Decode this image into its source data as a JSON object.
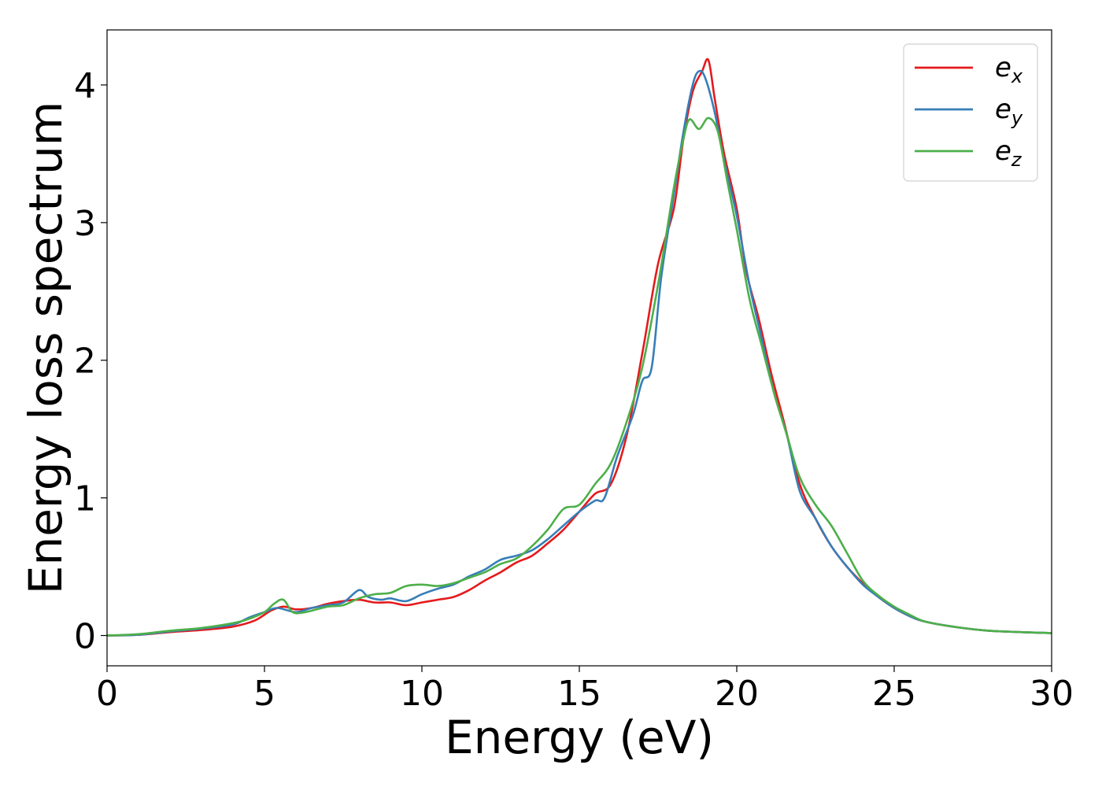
{
  "chart_data": {
    "type": "line",
    "title": "",
    "xlabel": "Energy (eV)",
    "ylabel": "Energy loss spectrum",
    "xlim": [
      0,
      30
    ],
    "ylim": [
      -0.22,
      4.4
    ],
    "xticks": [
      0,
      5,
      10,
      15,
      20,
      25,
      30
    ],
    "xtick_labels": [
      "0",
      "5",
      "10",
      "15",
      "20",
      "25",
      "30"
    ],
    "yticks": [
      0,
      1,
      2,
      3,
      4
    ],
    "ytick_labels": [
      "0",
      "1",
      "2",
      "3",
      "4"
    ],
    "grid": false,
    "legend_position": "top-right",
    "series": [
      {
        "name": "e_x",
        "label_base": "e",
        "label_sub": "x",
        "color": "#e41a1c",
        "points": [
          [
            0,
            0
          ],
          [
            1,
            0.005
          ],
          [
            2,
            0.025
          ],
          [
            3,
            0.04
          ],
          [
            4,
            0.065
          ],
          [
            4.7,
            0.11
          ],
          [
            5.2,
            0.18
          ],
          [
            5.6,
            0.21
          ],
          [
            6,
            0.19
          ],
          [
            6.5,
            0.2
          ],
          [
            7,
            0.23
          ],
          [
            7.5,
            0.25
          ],
          [
            8,
            0.26
          ],
          [
            8.5,
            0.24
          ],
          [
            9,
            0.24
          ],
          [
            9.5,
            0.22
          ],
          [
            10,
            0.24
          ],
          [
            10.5,
            0.26
          ],
          [
            11,
            0.28
          ],
          [
            11.5,
            0.33
          ],
          [
            12,
            0.4
          ],
          [
            12.5,
            0.46
          ],
          [
            13,
            0.53
          ],
          [
            13.5,
            0.58
          ],
          [
            14,
            0.67
          ],
          [
            14.5,
            0.77
          ],
          [
            15,
            0.9
          ],
          [
            15.5,
            1.03
          ],
          [
            16,
            1.1
          ],
          [
            16.5,
            1.45
          ],
          [
            17,
            2.05
          ],
          [
            17.5,
            2.7
          ],
          [
            18,
            3.1
          ],
          [
            18.3,
            3.6
          ],
          [
            18.6,
            3.95
          ],
          [
            18.9,
            4.1
          ],
          [
            19.1,
            4.18
          ],
          [
            19.3,
            3.9
          ],
          [
            19.6,
            3.5
          ],
          [
            20,
            3.1
          ],
          [
            20.3,
            2.65
          ],
          [
            20.7,
            2.3
          ],
          [
            21.1,
            1.9
          ],
          [
            21.5,
            1.55
          ],
          [
            22,
            1.1
          ],
          [
            22.5,
            0.85
          ],
          [
            23,
            0.65
          ],
          [
            23.5,
            0.5
          ],
          [
            24,
            0.38
          ],
          [
            24.5,
            0.28
          ],
          [
            25,
            0.2
          ],
          [
            25.5,
            0.14
          ],
          [
            26,
            0.1
          ],
          [
            27,
            0.06
          ],
          [
            28,
            0.035
          ],
          [
            29,
            0.025
          ],
          [
            30,
            0.018
          ]
        ]
      },
      {
        "name": "e_y",
        "label_base": "e",
        "label_sub": "y",
        "color": "#377eb8",
        "points": [
          [
            0,
            0
          ],
          [
            1,
            0.005
          ],
          [
            2,
            0.03
          ],
          [
            3,
            0.05
          ],
          [
            4,
            0.08
          ],
          [
            4.5,
            0.13
          ],
          [
            5,
            0.17
          ],
          [
            5.4,
            0.2
          ],
          [
            6,
            0.17
          ],
          [
            6.5,
            0.2
          ],
          [
            7,
            0.22
          ],
          [
            7.5,
            0.24
          ],
          [
            8,
            0.33
          ],
          [
            8.3,
            0.28
          ],
          [
            8.7,
            0.26
          ],
          [
            9,
            0.27
          ],
          [
            9.5,
            0.25
          ],
          [
            10,
            0.3
          ],
          [
            10.5,
            0.34
          ],
          [
            11,
            0.37
          ],
          [
            11.5,
            0.43
          ],
          [
            12,
            0.48
          ],
          [
            12.5,
            0.55
          ],
          [
            13,
            0.58
          ],
          [
            13.5,
            0.62
          ],
          [
            14,
            0.7
          ],
          [
            14.5,
            0.8
          ],
          [
            15,
            0.9
          ],
          [
            15.5,
            0.98
          ],
          [
            15.8,
            1.0
          ],
          [
            16.2,
            1.3
          ],
          [
            16.7,
            1.6
          ],
          [
            17,
            1.85
          ],
          [
            17.3,
            1.95
          ],
          [
            17.6,
            2.6
          ],
          [
            18,
            3.2
          ],
          [
            18.3,
            3.65
          ],
          [
            18.6,
            4.0
          ],
          [
            18.8,
            4.1
          ],
          [
            19,
            4.05
          ],
          [
            19.3,
            3.8
          ],
          [
            19.6,
            3.45
          ],
          [
            20,
            3.05
          ],
          [
            20.4,
            2.55
          ],
          [
            20.8,
            2.15
          ],
          [
            21.2,
            1.75
          ],
          [
            21.6,
            1.45
          ],
          [
            22,
            1.05
          ],
          [
            22.5,
            0.85
          ],
          [
            23,
            0.65
          ],
          [
            23.5,
            0.5
          ],
          [
            24,
            0.37
          ],
          [
            24.5,
            0.28
          ],
          [
            25,
            0.2
          ],
          [
            25.5,
            0.14
          ],
          [
            26,
            0.1
          ],
          [
            27,
            0.06
          ],
          [
            28,
            0.035
          ],
          [
            29,
            0.025
          ],
          [
            30,
            0.018
          ]
        ]
      },
      {
        "name": "e_z",
        "label_base": "e",
        "label_sub": "z",
        "color": "#4daf4a",
        "points": [
          [
            0,
            0
          ],
          [
            1,
            0.01
          ],
          [
            2,
            0.035
          ],
          [
            3,
            0.055
          ],
          [
            4,
            0.09
          ],
          [
            4.5,
            0.12
          ],
          [
            5,
            0.17
          ],
          [
            5.3,
            0.23
          ],
          [
            5.6,
            0.26
          ],
          [
            5.9,
            0.17
          ],
          [
            6.3,
            0.17
          ],
          [
            7,
            0.21
          ],
          [
            7.5,
            0.22
          ],
          [
            8,
            0.27
          ],
          [
            8.5,
            0.3
          ],
          [
            9,
            0.31
          ],
          [
            9.5,
            0.36
          ],
          [
            10,
            0.37
          ],
          [
            10.5,
            0.36
          ],
          [
            11,
            0.38
          ],
          [
            11.5,
            0.42
          ],
          [
            12,
            0.46
          ],
          [
            12.5,
            0.52
          ],
          [
            13,
            0.56
          ],
          [
            13.5,
            0.65
          ],
          [
            14,
            0.77
          ],
          [
            14.5,
            0.92
          ],
          [
            15,
            0.95
          ],
          [
            15.5,
            1.1
          ],
          [
            16,
            1.25
          ],
          [
            16.5,
            1.55
          ],
          [
            17,
            1.95
          ],
          [
            17.5,
            2.55
          ],
          [
            18,
            3.25
          ],
          [
            18.3,
            3.6
          ],
          [
            18.5,
            3.75
          ],
          [
            18.8,
            3.68
          ],
          [
            19.1,
            3.76
          ],
          [
            19.4,
            3.66
          ],
          [
            19.7,
            3.3
          ],
          [
            20,
            2.95
          ],
          [
            20.4,
            2.45
          ],
          [
            20.8,
            2.1
          ],
          [
            21.2,
            1.75
          ],
          [
            21.6,
            1.45
          ],
          [
            22,
            1.15
          ],
          [
            22.5,
            0.95
          ],
          [
            23,
            0.8
          ],
          [
            23.5,
            0.6
          ],
          [
            24,
            0.4
          ],
          [
            24.5,
            0.29
          ],
          [
            25,
            0.21
          ],
          [
            25.5,
            0.15
          ],
          [
            26,
            0.1
          ],
          [
            27,
            0.06
          ],
          [
            28,
            0.035
          ],
          [
            29,
            0.025
          ],
          [
            30,
            0.018
          ]
        ]
      }
    ]
  }
}
